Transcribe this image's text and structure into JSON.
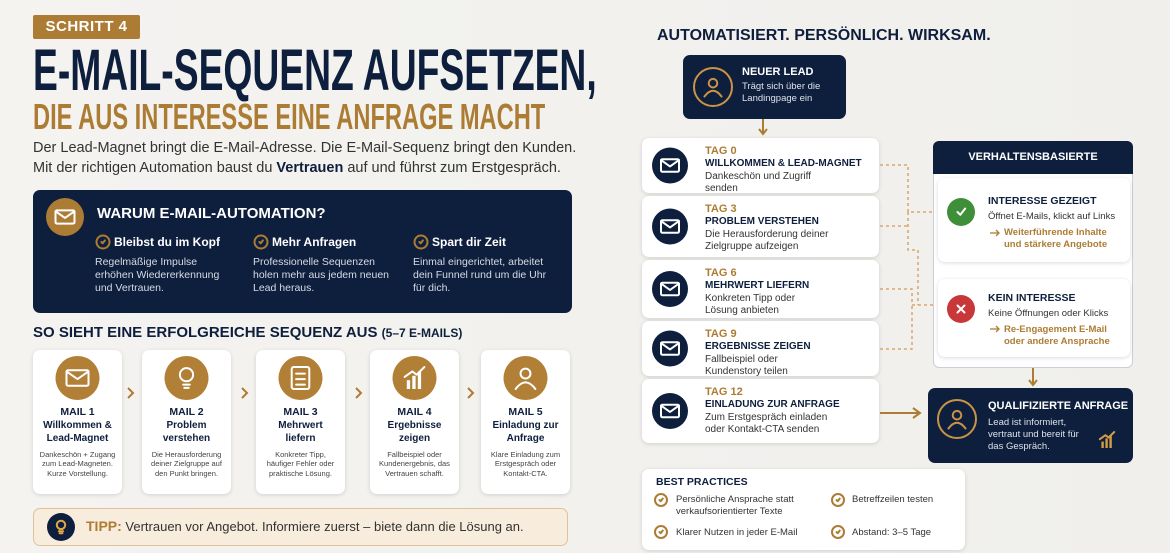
{
  "header": {
    "badge": "SCHRITT 4",
    "title_line1": "E-MAIL-SEQUENZ AUFSETZEN,",
    "title_line2": "DIE AUS INTERESSE EINE ANFRAGE MACHT",
    "intro_line1": "Der Lead-Magnet bringt die E-Mail-Adresse. Die E-Mail-Sequenz bringt den Kunden.",
    "intro_line2": {
      "before": "Mit der richtigen Automation baust du",
      "emphasis": "Vertrauen",
      "after": "auf und führst zum Erstgespräch."
    }
  },
  "why": {
    "title": "WARUM E-MAIL-AUTOMATION?",
    "items": [
      {
        "title": "Bleibst du im Kopf",
        "text": "Regelmäßige Impulse erhöhen Wiedererkennung und Vertrauen."
      },
      {
        "title": "Mehr Anfragen",
        "text": "Professionelle Sequenzen holen mehr aus jedem neuen Lead heraus."
      },
      {
        "title": "Spart dir Zeit",
        "text": "Einmal eingerichtet, arbeitet dein Funnel rund um die Uhr für dich."
      }
    ]
  },
  "sequence": {
    "title": "SO SIEHT EINE ERFOLGREICHE SEQUENZ AUS",
    "count": "(5–7 E-MAILS)",
    "mails": [
      {
        "label": "MAIL 1",
        "title": "Willkommen & Lead-Magnet",
        "text": "Dankeschön + Zugang zum Lead-Magneten. Kurze Vorstellung."
      },
      {
        "label": "MAIL 2",
        "title": "Problem verstehen",
        "text": "Die Herausforderung deiner Zielgruppe auf den Punkt bringen."
      },
      {
        "label": "MAIL 3",
        "title": "Mehrwert liefern",
        "text": "Konkreter Tipp, häufiger Fehler oder praktische Lösung."
      },
      {
        "label": "MAIL 4",
        "title": "Ergebnisse zeigen",
        "text": "Fallbeispiel oder Kundenergebnis, das Vertrauen schafft."
      },
      {
        "label": "MAIL 5",
        "title": "Einladung zur Anfrage",
        "text": "Klare Einladung zum Erstgespräch oder Kontakt-CTA."
      }
    ]
  },
  "tip": {
    "label": "TIPP:",
    "text": "Vertrauen vor Angebot. Informiere zuerst – biete dann die Lösung an."
  },
  "flow": {
    "title": "AUTOMATISIERT. PERSÖNLICH. WIRKSAM.",
    "start": {
      "title": "NEUER LEAD",
      "text": "Trägt sich über die Landingpage ein"
    },
    "days": [
      {
        "day": "TAG 0",
        "title": "WILLKOMMEN & LEAD-MAGNET",
        "text": "Dankeschön und Zugriff senden"
      },
      {
        "day": "TAG 3",
        "title": "PROBLEM VERSTEHEN",
        "text": "Die Herausforderung deiner Zielgruppe aufzeigen"
      },
      {
        "day": "TAG 6",
        "title": "MEHRWERT LIEFERN",
        "text": "Konkreten Tipp oder Lösung anbieten"
      },
      {
        "day": "TAG 9",
        "title": "ERGEBNISSE ZEIGEN",
        "text": "Fallbeispiel oder Kundenstory teilen"
      },
      {
        "day": "TAG 12",
        "title": "EINLADUNG ZUR ANFRAGE",
        "text": "Zum Erstgespräch einladen oder Kontakt-CTA senden"
      }
    ]
  },
  "behavior": {
    "title": "VERHALTENSBASIERTE AUTOMATION",
    "branches": [
      {
        "title": "INTERESSE GEZEIGT",
        "text": "Öffnet E-Mails, klickt auf Links",
        "action": "Weiterführende Inhalte und stärkere Angebote"
      },
      {
        "title": "KEIN INTERESSE",
        "text": "Keine Öffnungen oder Klicks",
        "action": "Re-Engagement E-Mail oder andere Ansprache"
      }
    ]
  },
  "result": {
    "title": "QUALIFIZIERTE ANFRAGE",
    "text": "Lead ist informiert, vertraut und bereit für das Gespräch."
  },
  "best_practices": {
    "title": "BEST PRACTICES",
    "items": [
      "Persönliche Ansprache statt verkaufsorientierter Texte",
      "Betreffzeilen testen",
      "Klarer Nutzen in jeder E-Mail",
      "Abstand: 3–5 Tage"
    ]
  }
}
